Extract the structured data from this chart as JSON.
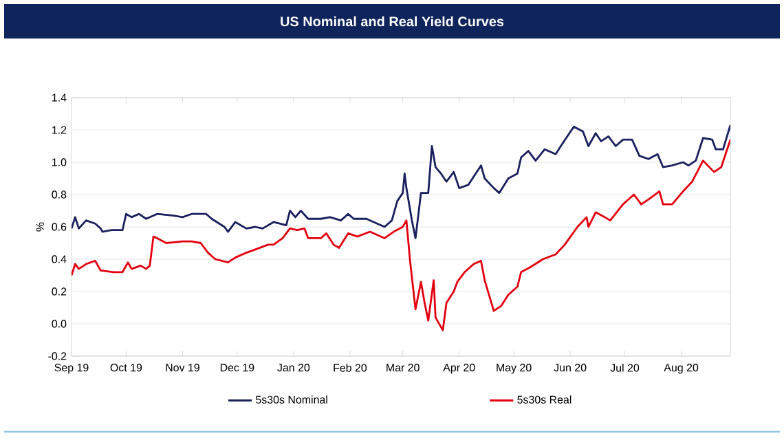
{
  "chart_data": {
    "type": "line",
    "title": "US Nominal and Real Yield Curves",
    "ylabel": "%",
    "xlim": [
      "2019-09-01",
      "2020-08-28"
    ],
    "xticks": [
      {
        "value": "2019-09-01",
        "label": "Sep 19"
      },
      {
        "value": "2019-10-01",
        "label": "Oct 19"
      },
      {
        "value": "2019-11-01",
        "label": "Nov 19"
      },
      {
        "value": "2019-12-01",
        "label": "Dec 19"
      },
      {
        "value": "2020-01-01",
        "label": "Jan 20"
      },
      {
        "value": "2020-02-01",
        "label": "Feb 20"
      },
      {
        "value": "2020-03-01",
        "label": "Mar 20"
      },
      {
        "value": "2020-04-01",
        "label": "Apr 20"
      },
      {
        "value": "2020-05-01",
        "label": "May 20"
      },
      {
        "value": "2020-06-01",
        "label": "Jun 20"
      },
      {
        "value": "2020-07-01",
        "label": "Jul 20"
      },
      {
        "value": "2020-08-01",
        "label": "Aug 20"
      }
    ],
    "ylim": [
      -0.2,
      1.4
    ],
    "yticks": [
      -0.2,
      {
        "value": 0,
        "label": "0.0"
      },
      0.2,
      0.4,
      0.6,
      0.8,
      {
        "value": 1,
        "label": "1.0"
      },
      1.2,
      1.4
    ],
    "grid": "y",
    "legend": "bottom",
    "marker": "none",
    "line_style": "solid",
    "series": [
      {
        "name": "5s30s Nominal",
        "color": "#1a1f5e",
        "x": [
          "2019-09-01",
          "2019-09-03",
          "2019-09-05",
          "2019-09-09",
          "2019-09-14",
          "2019-09-17",
          "2019-09-18",
          "2019-09-23",
          "2019-09-29",
          "2019-10-01",
          "2019-10-04",
          "2019-10-08",
          "2019-10-12",
          "2019-10-18",
          "2019-10-27",
          "2019-11-01",
          "2019-11-06",
          "2019-11-14",
          "2019-11-17",
          "2019-11-24",
          "2019-11-26",
          "2019-11-30",
          "2019-12-06",
          "2019-12-11",
          "2019-12-15",
          "2019-12-21",
          "2019-12-28",
          "2019-12-30",
          "2020-01-02",
          "2020-01-05",
          "2020-01-09",
          "2020-01-16",
          "2020-01-21",
          "2020-01-27",
          "2020-01-31",
          "2020-02-03",
          "2020-02-10",
          "2020-02-20",
          "2020-02-24",
          "2020-02-27",
          "2020-03-01",
          "2020-03-02",
          "2020-03-03",
          "2020-03-06",
          "2020-03-08",
          "2020-03-11",
          "2020-03-15",
          "2020-03-17",
          "2020-03-19",
          "2020-03-22",
          "2020-03-25",
          "2020-03-29",
          "2020-04-01",
          "2020-04-06",
          "2020-04-13",
          "2020-04-15",
          "2020-04-20",
          "2020-04-23",
          "2020-04-28",
          "2020-05-03",
          "2020-05-05",
          "2020-05-09",
          "2020-05-13",
          "2020-05-18",
          "2020-05-24",
          "2020-05-28",
          "2020-06-03",
          "2020-06-08",
          "2020-06-11",
          "2020-06-15",
          "2020-06-18",
          "2020-06-22",
          "2020-06-26",
          "2020-06-30",
          "2020-07-05",
          "2020-07-09",
          "2020-07-14",
          "2020-07-19",
          "2020-07-22",
          "2020-07-27",
          "2020-08-02",
          "2020-08-05",
          "2020-08-09",
          "2020-08-13",
          "2020-08-18",
          "2020-08-20",
          "2020-08-24",
          "2020-08-28"
        ],
        "values": [
          0.59,
          0.66,
          0.59,
          0.64,
          0.62,
          0.59,
          0.57,
          0.58,
          0.58,
          0.68,
          0.66,
          0.68,
          0.65,
          0.68,
          0.67,
          0.66,
          0.68,
          0.68,
          0.65,
          0.6,
          0.57,
          0.63,
          0.59,
          0.6,
          0.59,
          0.63,
          0.61,
          0.7,
          0.66,
          0.7,
          0.65,
          0.65,
          0.66,
          0.64,
          0.68,
          0.65,
          0.65,
          0.6,
          0.64,
          0.76,
          0.81,
          0.93,
          0.84,
          0.64,
          0.53,
          0.81,
          0.81,
          1.1,
          0.97,
          0.93,
          0.88,
          0.94,
          0.84,
          0.86,
          0.98,
          0.9,
          0.84,
          0.81,
          0.9,
          0.93,
          1.03,
          1.07,
          1.01,
          1.08,
          1.05,
          1.12,
          1.22,
          1.19,
          1.1,
          1.18,
          1.13,
          1.16,
          1.1,
          1.14,
          1.14,
          1.04,
          1.02,
          1.05,
          0.97,
          0.98,
          1.0,
          0.98,
          1.01,
          1.15,
          1.14,
          1.08,
          1.08,
          1.23
        ]
      },
      {
        "name": "5s30s Real",
        "color": "#e3000f",
        "x": [
          "2019-09-01",
          "2019-09-03",
          "2019-09-05",
          "2019-09-09",
          "2019-09-14",
          "2019-09-17",
          "2019-09-24",
          "2019-09-29",
          "2019-10-02",
          "2019-10-04",
          "2019-10-09",
          "2019-10-12",
          "2019-10-14",
          "2019-10-16",
          "2019-10-18",
          "2019-10-23",
          "2019-11-01",
          "2019-11-06",
          "2019-11-11",
          "2019-11-15",
          "2019-11-19",
          "2019-11-26",
          "2019-11-30",
          "2019-12-06",
          "2019-12-11",
          "2019-12-18",
          "2019-12-21",
          "2019-12-26",
          "2019-12-30",
          "2020-01-03",
          "2020-01-07",
          "2020-01-09",
          "2020-01-16",
          "2020-01-19",
          "2020-01-23",
          "2020-01-26",
          "2020-01-31",
          "2020-02-05",
          "2020-02-12",
          "2020-02-20",
          "2020-02-25",
          "2020-03-01",
          "2020-03-03",
          "2020-03-05",
          "2020-03-08",
          "2020-03-11",
          "2020-03-13",
          "2020-03-15",
          "2020-03-18",
          "2020-03-19",
          "2020-03-23",
          "2020-03-25",
          "2020-03-29",
          "2020-03-31",
          "2020-04-04",
          "2020-04-09",
          "2020-04-13",
          "2020-04-15",
          "2020-04-20",
          "2020-04-24",
          "2020-04-28",
          "2020-05-03",
          "2020-05-05",
          "2020-05-10",
          "2020-05-17",
          "2020-05-24",
          "2020-05-29",
          "2020-06-05",
          "2020-06-10",
          "2020-06-11",
          "2020-06-15",
          "2020-06-20",
          "2020-06-23",
          "2020-06-30",
          "2020-07-06",
          "2020-07-10",
          "2020-07-14",
          "2020-07-20",
          "2020-07-22",
          "2020-07-27",
          "2020-08-02",
          "2020-08-07",
          "2020-08-13",
          "2020-08-19",
          "2020-08-23",
          "2020-08-28"
        ],
        "values": [
          0.3,
          0.37,
          0.34,
          0.37,
          0.39,
          0.33,
          0.32,
          0.32,
          0.38,
          0.34,
          0.36,
          0.34,
          0.36,
          0.54,
          0.53,
          0.5,
          0.51,
          0.51,
          0.5,
          0.44,
          0.4,
          0.38,
          0.41,
          0.44,
          0.46,
          0.49,
          0.49,
          0.53,
          0.59,
          0.58,
          0.59,
          0.53,
          0.53,
          0.56,
          0.49,
          0.47,
          0.56,
          0.54,
          0.57,
          0.53,
          0.57,
          0.6,
          0.64,
          0.39,
          0.09,
          0.26,
          0.13,
          0.02,
          0.27,
          0.04,
          -0.04,
          0.13,
          0.2,
          0.26,
          0.32,
          0.37,
          0.39,
          0.27,
          0.08,
          0.11,
          0.18,
          0.23,
          0.32,
          0.35,
          0.4,
          0.43,
          0.49,
          0.6,
          0.66,
          0.6,
          0.69,
          0.66,
          0.64,
          0.74,
          0.8,
          0.74,
          0.77,
          0.82,
          0.74,
          0.74,
          0.82,
          0.88,
          1.01,
          0.94,
          0.97,
          1.14
        ]
      }
    ]
  }
}
